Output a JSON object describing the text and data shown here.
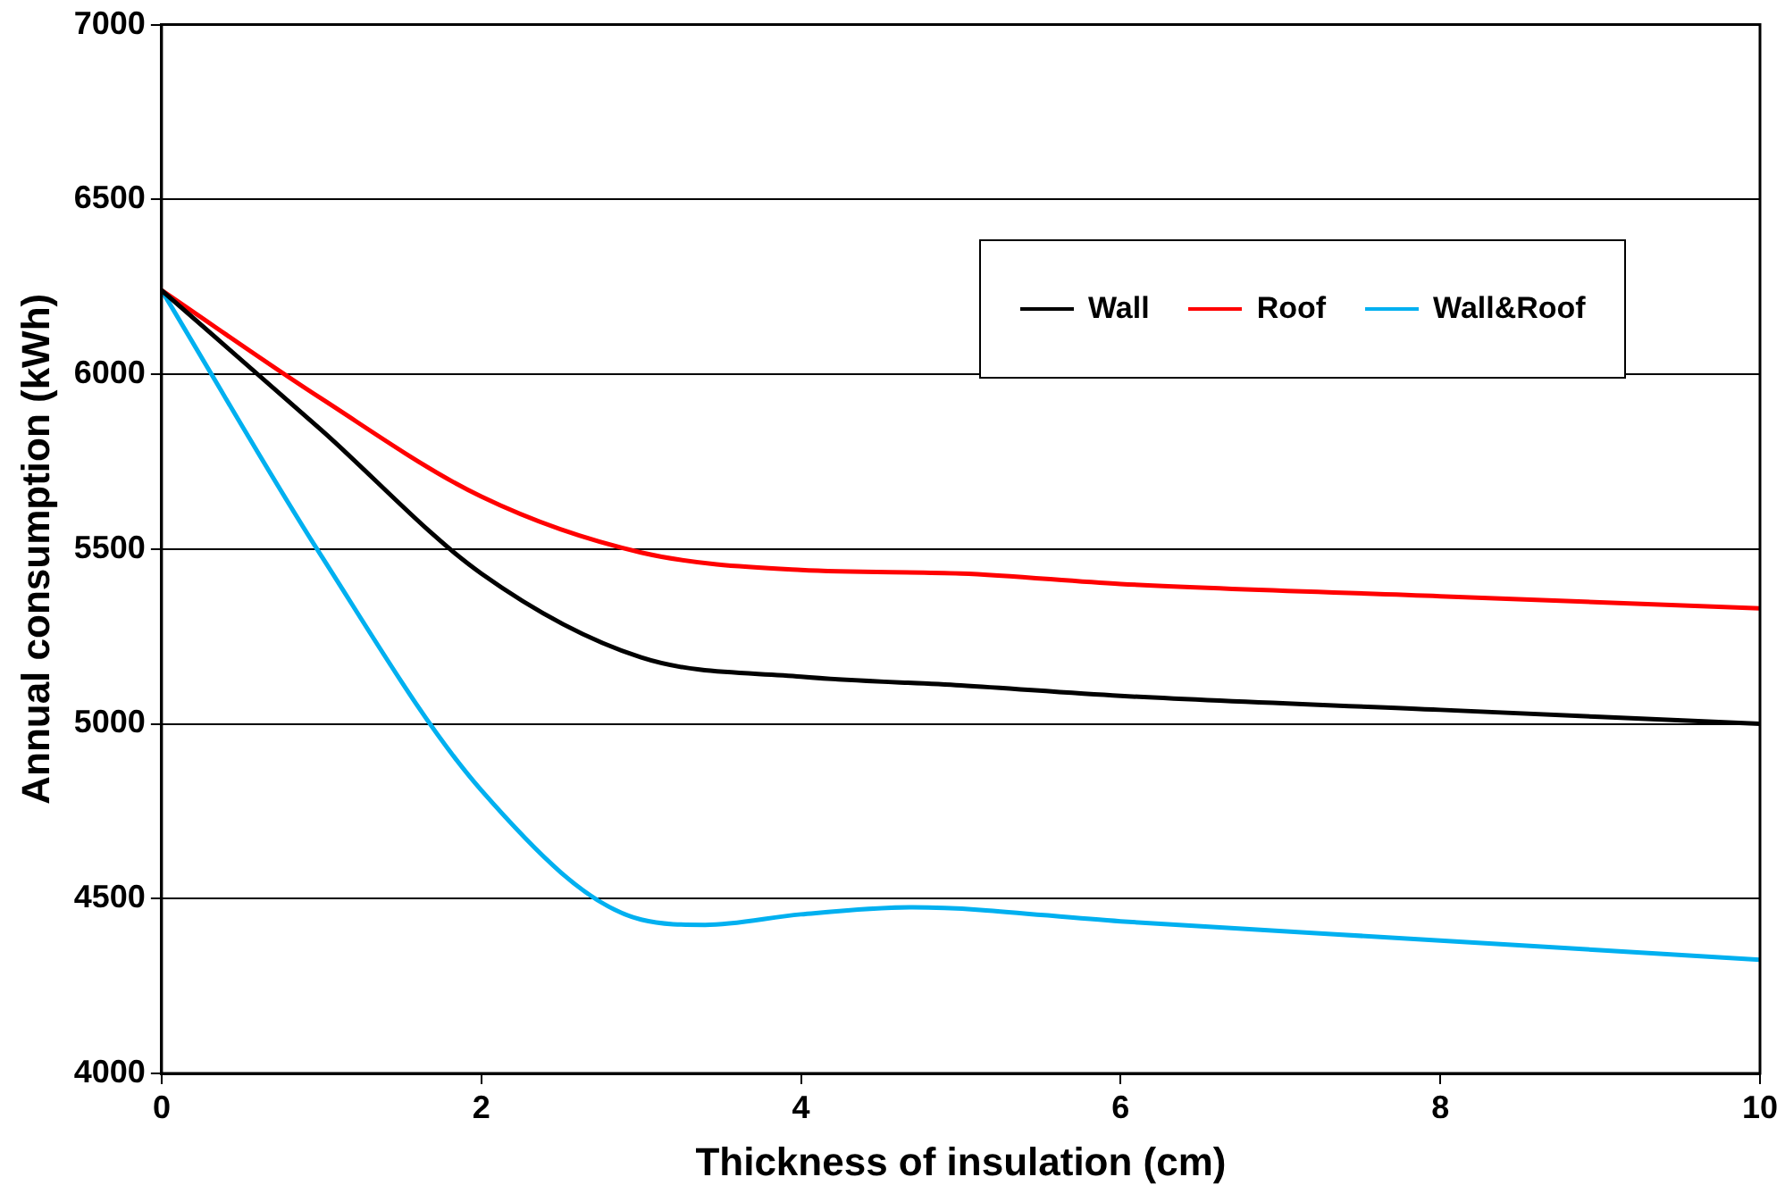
{
  "chart_data": {
    "type": "line",
    "xlabel": "Thickness of insulation (cm)",
    "ylabel": "Annual consumption (kWh)",
    "xlim": [
      0,
      10
    ],
    "xticks": [
      0,
      2,
      4,
      6,
      8,
      10
    ],
    "ylim": [
      4000,
      7000
    ],
    "yticks": [
      4000,
      4500,
      5000,
      5500,
      6000,
      6500,
      7000
    ],
    "grid": "y",
    "legend": "top right",
    "marker": "none",
    "line_style": "solid",
    "series": [
      {
        "name": "Wall",
        "color": "#000000",
        "x": [
          0,
          1,
          2,
          3,
          4,
          5,
          6,
          8,
          10
        ],
        "values": [
          6240,
          5840,
          5430,
          5190,
          5135,
          5110,
          5080,
          5040,
          5000
        ]
      },
      {
        "name": "Roof",
        "color": "#ff0000",
        "x": [
          0,
          1,
          2,
          3,
          4,
          5,
          6,
          8,
          10
        ],
        "values": [
          6240,
          5930,
          5650,
          5490,
          5440,
          5430,
          5400,
          5365,
          5330
        ]
      },
      {
        "name": "Wall&Roof",
        "color": "#00b0f0",
        "x": [
          0,
          1,
          2,
          3,
          3.4,
          4,
          4.7,
          6,
          8,
          10
        ],
        "values": [
          6240,
          5480,
          4810,
          4440,
          4425,
          4455,
          4475,
          4435,
          4380,
          4325
        ]
      }
    ]
  }
}
